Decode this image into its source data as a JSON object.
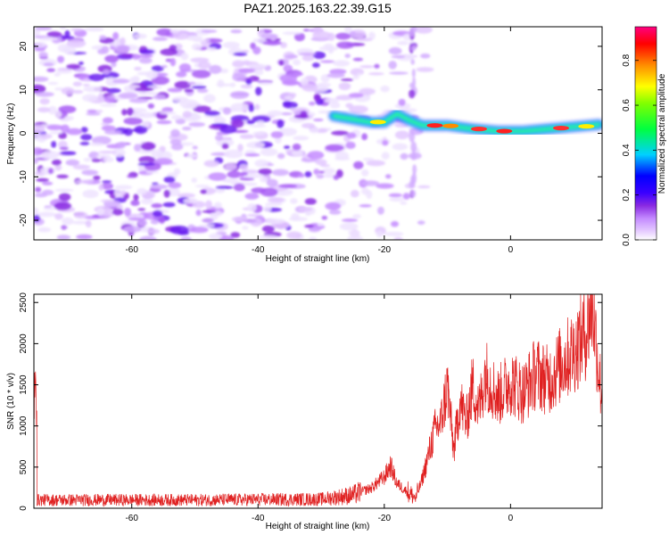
{
  "title": "PAZ1.2025.163.22.39.G15",
  "chart_data": [
    {
      "type": "heatmap",
      "xlabel": "Height of straight line (km)",
      "ylabel": "Frequency (Hz)",
      "xlim": [
        -75.5,
        14.5
      ],
      "ylim": [
        -24.5,
        24.5
      ],
      "xticks": [
        -60,
        -40,
        -20,
        0
      ],
      "yticks": [
        -20,
        -10,
        0,
        10,
        20
      ],
      "colorbar": {
        "label": "Normalized spectral amplitude",
        "range": [
          0.0,
          0.95
        ],
        "ticks": [
          0.0,
          0.2,
          0.4,
          0.6,
          0.8
        ],
        "placement": "right",
        "colors": [
          "#ffffff",
          "#e3c8ff",
          "#c48bff",
          "#8a2be2",
          "#3a00ff",
          "#0000ff",
          "#00d0ff",
          "#00ff00",
          "#ffff00",
          "#ff8c00",
          "#ff0000",
          "#ff0080"
        ]
      },
      "signal_track": [
        {
          "x": -28,
          "f": 4.0
        },
        {
          "x": -24,
          "f": 3.0
        },
        {
          "x": -22,
          "f": 2.5
        },
        {
          "x": -20,
          "f": 2.5
        },
        {
          "x": -18,
          "f": 4.5
        },
        {
          "x": -16,
          "f": 3.0
        },
        {
          "x": -14,
          "f": 1.8
        },
        {
          "x": -10,
          "f": 1.8
        },
        {
          "x": -6,
          "f": 1.0
        },
        {
          "x": -2,
          "f": 0.5
        },
        {
          "x": 2,
          "f": 0.5
        },
        {
          "x": 6,
          "f": 1.0
        },
        {
          "x": 10,
          "f": 1.5
        },
        {
          "x": 14,
          "f": 2.0
        }
      ]
    },
    {
      "type": "line",
      "xlabel": "Height of straight line (km)",
      "ylabel": "SNR (10 * v/v)",
      "xlim": [
        -75.5,
        14.5
      ],
      "ylim": [
        0,
        2600
      ],
      "xticks": [
        -60,
        -40,
        -20,
        0
      ],
      "yticks": [
        0,
        500,
        1000,
        1500,
        2000,
        2500
      ],
      "color": "#e02020",
      "envelope": [
        {
          "x": -75,
          "y": 100
        },
        {
          "x": -50,
          "y": 100
        },
        {
          "x": -30,
          "y": 110
        },
        {
          "x": -25,
          "y": 160
        },
        {
          "x": -22,
          "y": 250
        },
        {
          "x": -20,
          "y": 380
        },
        {
          "x": -19,
          "y": 520
        },
        {
          "x": -18,
          "y": 300
        },
        {
          "x": -16,
          "y": 180
        },
        {
          "x": -15,
          "y": 120
        },
        {
          "x": -14,
          "y": 350
        },
        {
          "x": -13,
          "y": 650
        },
        {
          "x": -12,
          "y": 950
        },
        {
          "x": -11,
          "y": 1050
        },
        {
          "x": -10,
          "y": 1500
        },
        {
          "x": -9,
          "y": 700
        },
        {
          "x": -8,
          "y": 1300
        },
        {
          "x": -7,
          "y": 1050
        },
        {
          "x": -6,
          "y": 1500
        },
        {
          "x": -5,
          "y": 1200
        },
        {
          "x": -4,
          "y": 1650
        },
        {
          "x": -2,
          "y": 1350
        },
        {
          "x": 0,
          "y": 1550
        },
        {
          "x": 2,
          "y": 1400
        },
        {
          "x": 4,
          "y": 1650
        },
        {
          "x": 6,
          "y": 1550
        },
        {
          "x": 8,
          "y": 1750
        },
        {
          "x": 10,
          "y": 1900
        },
        {
          "x": 12,
          "y": 2150
        },
        {
          "x": 13,
          "y": 2500
        },
        {
          "x": 14,
          "y": 1650
        },
        {
          "x": 14.5,
          "y": 1350
        }
      ]
    }
  ]
}
